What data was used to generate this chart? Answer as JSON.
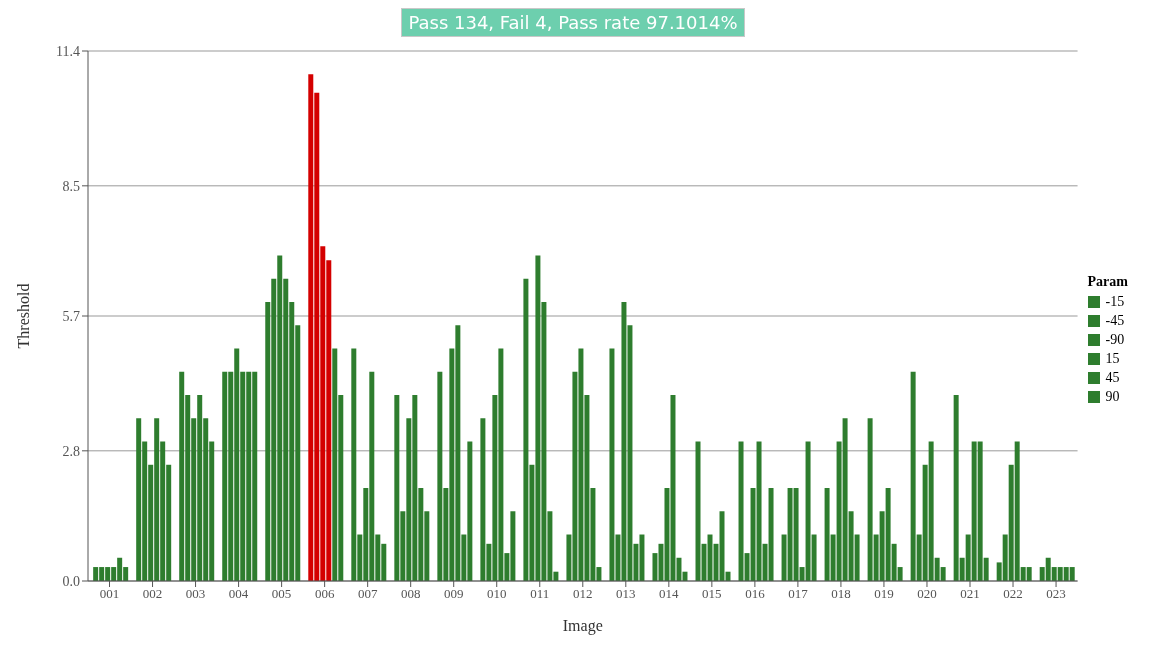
{
  "chart_data": {
    "type": "bar",
    "title": "Pass 134, Fail 4, Pass rate 97.1014%",
    "xlabel": "Image",
    "ylabel": "Threshold",
    "legend_title": "Param",
    "categories": [
      "001",
      "002",
      "003",
      "004",
      "005",
      "006",
      "007",
      "008",
      "009",
      "010",
      "011",
      "012",
      "013",
      "014",
      "015",
      "016",
      "017",
      "018",
      "019",
      "020",
      "021",
      "022",
      "023"
    ],
    "series": [
      {
        "name": "-15",
        "color": "#2e7d2e",
        "colors": [
          "#2e7d2e",
          "#2e7d2e",
          "#2e7d2e",
          "#2e7d2e",
          "#2e7d2e",
          "#d40000",
          "#2e7d2e",
          "#2e7d2e",
          "#2e7d2e",
          "#2e7d2e",
          "#2e7d2e",
          "#2e7d2e",
          "#2e7d2e",
          "#2e7d2e",
          "#2e7d2e",
          "#2e7d2e",
          "#2e7d2e",
          "#2e7d2e",
          "#2e7d2e",
          "#2e7d2e",
          "#2e7d2e",
          "#2e7d2e",
          "#2e7d2e"
        ],
        "values": [
          0.3,
          3.5,
          4.5,
          4.5,
          6.0,
          10.9,
          5.0,
          4.0,
          4.5,
          3.5,
          6.5,
          1.0,
          5.0,
          0.6,
          3.0,
          3.0,
          1.0,
          2.0,
          3.5,
          4.5,
          4.0,
          0.4,
          0.3
        ]
      },
      {
        "name": "-45",
        "color": "#2e7d2e",
        "colors": [
          "#2e7d2e",
          "#2e7d2e",
          "#2e7d2e",
          "#2e7d2e",
          "#2e7d2e",
          "#d40000",
          "#2e7d2e",
          "#2e7d2e",
          "#2e7d2e",
          "#2e7d2e",
          "#2e7d2e",
          "#2e7d2e",
          "#2e7d2e",
          "#2e7d2e",
          "#2e7d2e",
          "#2e7d2e",
          "#2e7d2e",
          "#2e7d2e",
          "#2e7d2e",
          "#2e7d2e",
          "#2e7d2e",
          "#2e7d2e",
          "#2e7d2e"
        ],
        "values": [
          0.3,
          3.0,
          4.0,
          4.5,
          6.5,
          10.5,
          1.0,
          1.5,
          2.0,
          0.8,
          2.5,
          4.5,
          1.0,
          0.8,
          0.8,
          0.6,
          2.0,
          1.0,
          1.0,
          1.0,
          0.5,
          1.0,
          0.5
        ]
      },
      {
        "name": "-90",
        "color": "#2e7d2e",
        "colors": [
          "#2e7d2e",
          "#2e7d2e",
          "#2e7d2e",
          "#2e7d2e",
          "#2e7d2e",
          "#d40000",
          "#2e7d2e",
          "#2e7d2e",
          "#2e7d2e",
          "#2e7d2e",
          "#2e7d2e",
          "#2e7d2e",
          "#2e7d2e",
          "#2e7d2e",
          "#2e7d2e",
          "#2e7d2e",
          "#2e7d2e",
          "#2e7d2e",
          "#2e7d2e",
          "#2e7d2e",
          "#2e7d2e",
          "#2e7d2e",
          "#2e7d2e"
        ],
        "values": [
          0.3,
          2.5,
          3.5,
          5.0,
          7.0,
          7.2,
          2.0,
          3.5,
          5.0,
          4.0,
          7.0,
          5.0,
          6.0,
          2.0,
          1.0,
          2.0,
          2.0,
          3.0,
          1.5,
          2.5,
          1.0,
          2.5,
          0.3
        ]
      },
      {
        "name": "15",
        "color": "#2e7d2e",
        "colors": [
          "#2e7d2e",
          "#2e7d2e",
          "#2e7d2e",
          "#2e7d2e",
          "#2e7d2e",
          "#d40000",
          "#2e7d2e",
          "#2e7d2e",
          "#2e7d2e",
          "#2e7d2e",
          "#2e7d2e",
          "#2e7d2e",
          "#2e7d2e",
          "#2e7d2e",
          "#2e7d2e",
          "#2e7d2e",
          "#2e7d2e",
          "#2e7d2e",
          "#2e7d2e",
          "#2e7d2e",
          "#2e7d2e",
          "#2e7d2e",
          "#2e7d2e"
        ],
        "values": [
          0.3,
          3.5,
          4.0,
          4.5,
          6.5,
          6.9,
          4.5,
          4.0,
          5.5,
          5.0,
          6.0,
          4.0,
          5.5,
          4.0,
          0.8,
          3.0,
          0.3,
          3.5,
          2.0,
          3.0,
          3.0,
          3.0,
          0.3
        ]
      },
      {
        "name": "45",
        "color": "#2e7d2e",
        "values": [
          0.5,
          3.0,
          3.5,
          4.5,
          6.0,
          5.0,
          1.0,
          2.0,
          1.0,
          0.6,
          1.5,
          2.0,
          0.8,
          0.5,
          1.5,
          0.8,
          3.0,
          1.5,
          0.8,
          0.5,
          3.0,
          0.3,
          0.3
        ]
      },
      {
        "name": "90",
        "color": "#2e7d2e",
        "values": [
          0.3,
          2.5,
          3.0,
          4.5,
          5.5,
          4.0,
          0.8,
          1.5,
          3.0,
          1.5,
          0.2,
          0.3,
          1.0,
          0.2,
          0.2,
          2.0,
          1.0,
          1.0,
          0.3,
          0.3,
          0.5,
          0.3,
          0.3
        ]
      }
    ],
    "ylim": [
      0,
      11.4
    ],
    "yticks": [
      {
        "value": 0,
        "label": "0.0"
      },
      2.8,
      5.7,
      8.5,
      11.4
    ],
    "grid": "y",
    "legend": "right"
  }
}
